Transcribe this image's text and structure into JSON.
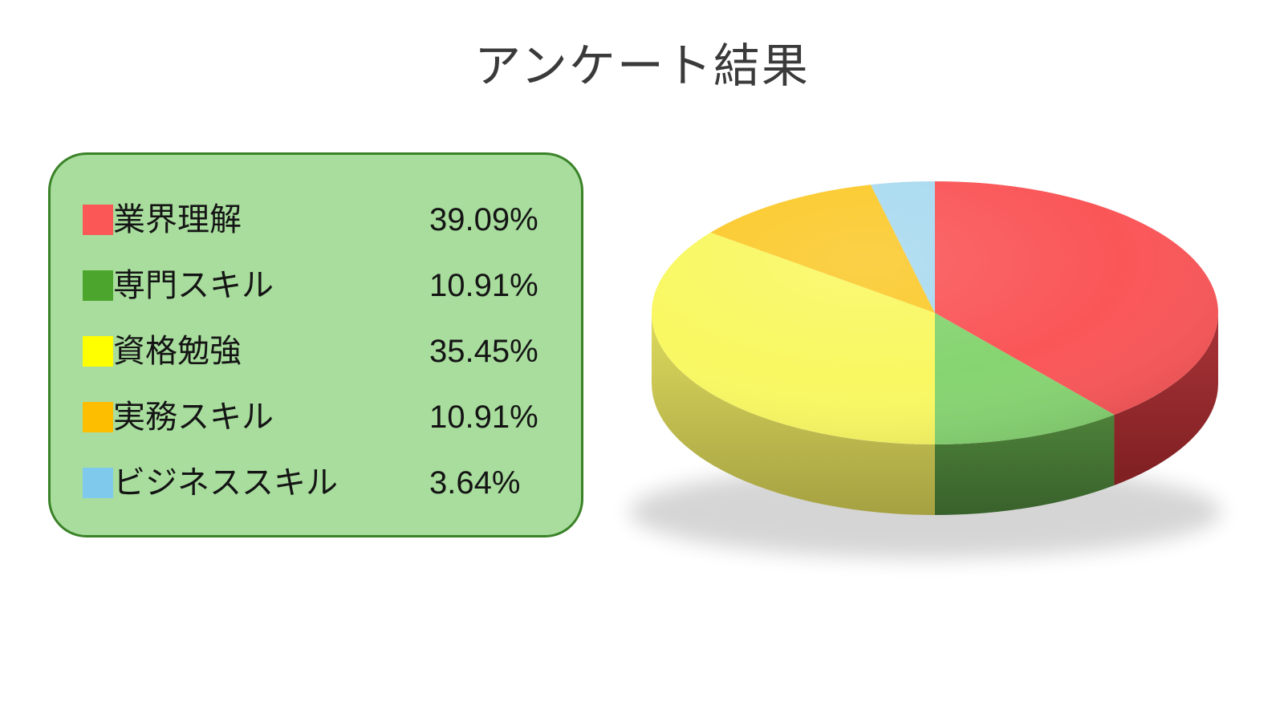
{
  "title": "アンケート結果",
  "legend": {
    "box_fill": "#a8dd9d",
    "box_border": "#3a8228",
    "items": [
      {
        "label": "業界理解",
        "value": "39.09%",
        "color": "#fb5757"
      },
      {
        "label": "専門スキル",
        "value": "10.91%",
        "color": "#4ca52c"
      },
      {
        "label": "資格勉強",
        "value": "35.45%",
        "color": "#ffff00"
      },
      {
        "label": "実務スキル",
        "value": "10.91%",
        "color": "#febe00"
      },
      {
        "label": "ビジネススキル",
        "value": "3.64%",
        "color": "#7fc9ec"
      }
    ]
  },
  "chart_data": {
    "type": "pie",
    "style": "3d",
    "title": "アンケート結果",
    "unit": "%",
    "start_angle_deg": 0,
    "direction": "clockwise",
    "legend_position": "left",
    "categories": [
      "業界理解",
      "専門スキル",
      "資格勉強",
      "実務スキル",
      "ビジネススキル"
    ],
    "values": [
      39.09,
      10.91,
      35.45,
      10.91,
      3.64
    ],
    "value_labels": [
      "39.09%",
      "10.91%",
      "35.45%",
      "10.91%",
      "3.64%"
    ],
    "slice_colors": [
      {
        "top": "#fa5658",
        "side_light": "#a93438",
        "side_dark": "#7e1f22"
      },
      {
        "top": "#86d471",
        "side_light": "#4e8139",
        "side_dark": "#38612b"
      },
      {
        "top": "#f9f862",
        "side_light": "#dedb5e",
        "side_dark": "#a5a142"
      },
      {
        "top": "#fbca2e",
        "side_light": "#c79a1f",
        "side_dark": "#a87f15"
      },
      {
        "top": "#aadaf0",
        "side_light": "#7fa9c4",
        "side_dark": "#6b93ad"
      }
    ]
  }
}
